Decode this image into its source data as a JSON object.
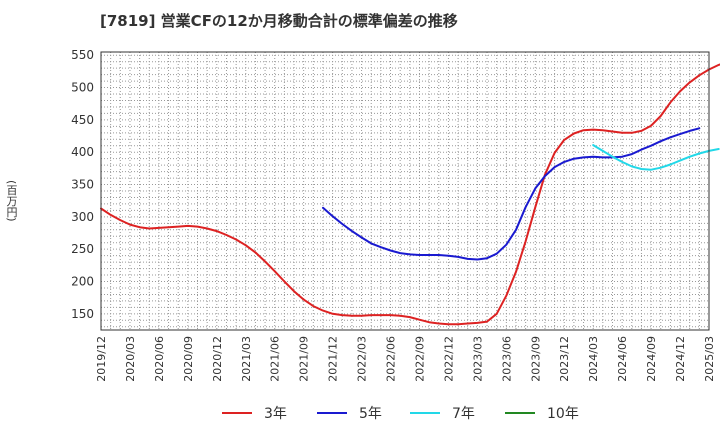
{
  "chart_data": {
    "type": "line",
    "title": "[7819]  営業CFの12か月移動合計の標準偏差の推移",
    "ylabel": "(百万円)",
    "xlabel": "",
    "ylim": [
      125,
      555
    ],
    "yticks": [
      150,
      200,
      250,
      300,
      350,
      400,
      450,
      500,
      550
    ],
    "x_ticks": [
      "2019/12",
      "2020/03",
      "2020/06",
      "2020/09",
      "2020/12",
      "2021/03",
      "2021/06",
      "2021/09",
      "2021/12",
      "2022/03",
      "2022/06",
      "2022/09",
      "2022/12",
      "2023/03",
      "2023/06",
      "2023/09",
      "2023/12",
      "2024/03",
      "2024/06",
      "2024/09",
      "2024/12",
      "2025/03"
    ],
    "grid": true,
    "legend_position": "bottom",
    "series": [
      {
        "name": "3年",
        "color": "#dd2222",
        "points": [
          [
            "2019/12",
            313
          ],
          [
            "2020/01",
            303
          ],
          [
            "2020/02",
            295
          ],
          [
            "2020/03",
            288
          ],
          [
            "2020/04",
            284
          ],
          [
            "2020/05",
            282
          ],
          [
            "2020/06",
            283
          ],
          [
            "2020/07",
            284
          ],
          [
            "2020/08",
            285
          ],
          [
            "2020/09",
            286
          ],
          [
            "2020/10",
            285
          ],
          [
            "2020/11",
            282
          ],
          [
            "2020/12",
            278
          ],
          [
            "2021/01",
            272
          ],
          [
            "2021/02",
            265
          ],
          [
            "2021/03",
            256
          ],
          [
            "2021/04",
            245
          ],
          [
            "2021/05",
            231
          ],
          [
            "2021/06",
            216
          ],
          [
            "2021/07",
            200
          ],
          [
            "2021/08",
            185
          ],
          [
            "2021/09",
            172
          ],
          [
            "2021/10",
            162
          ],
          [
            "2021/11",
            155
          ],
          [
            "2021/12",
            150
          ],
          [
            "2022/01",
            148
          ],
          [
            "2022/02",
            147
          ],
          [
            "2022/03",
            147
          ],
          [
            "2022/04",
            148
          ],
          [
            "2022/05",
            148
          ],
          [
            "2022/06",
            148
          ],
          [
            "2022/07",
            147
          ],
          [
            "2022/08",
            145
          ],
          [
            "2022/09",
            141
          ],
          [
            "2022/10",
            137
          ],
          [
            "2022/11",
            135
          ],
          [
            "2022/12",
            134
          ],
          [
            "2023/01",
            134
          ],
          [
            "2023/02",
            135
          ],
          [
            "2023/03",
            136
          ],
          [
            "2023/04",
            138
          ],
          [
            "2023/05",
            150
          ],
          [
            "2023/06",
            178
          ],
          [
            "2023/07",
            215
          ],
          [
            "2023/08",
            262
          ],
          [
            "2023/09",
            315
          ],
          [
            "2023/10",
            365
          ],
          [
            "2023/11",
            399
          ],
          [
            "2023/12",
            419
          ],
          [
            "2024/01",
            429
          ],
          [
            "2024/02",
            434
          ],
          [
            "2024/03",
            435
          ],
          [
            "2024/04",
            434
          ],
          [
            "2024/05",
            432
          ],
          [
            "2024/06",
            430
          ],
          [
            "2024/07",
            430
          ],
          [
            "2024/08",
            433
          ],
          [
            "2024/09",
            441
          ],
          [
            "2024/10",
            456
          ],
          [
            "2024/11",
            477
          ],
          [
            "2024/12",
            494
          ],
          [
            "2025/01",
            508
          ],
          [
            "2025/02",
            519
          ],
          [
            "2025/03",
            528
          ],
          [
            "2025/04",
            535
          ],
          [
            "2025/05",
            540
          ],
          [
            "2025/06",
            543
          ]
        ]
      },
      {
        "name": "5年",
        "color": "#1a1ad0",
        "points": [
          [
            "2021/11",
            314
          ],
          [
            "2021/12",
            301
          ],
          [
            "2022/01",
            289
          ],
          [
            "2022/02",
            278
          ],
          [
            "2022/03",
            268
          ],
          [
            "2022/04",
            259
          ],
          [
            "2022/05",
            253
          ],
          [
            "2022/06",
            248
          ],
          [
            "2022/07",
            244
          ],
          [
            "2022/08",
            242
          ],
          [
            "2022/09",
            241
          ],
          [
            "2022/10",
            241
          ],
          [
            "2022/11",
            241
          ],
          [
            "2022/12",
            240
          ],
          [
            "2023/01",
            238
          ],
          [
            "2023/02",
            235
          ],
          [
            "2023/03",
            234
          ],
          [
            "2023/04",
            236
          ],
          [
            "2023/05",
            243
          ],
          [
            "2023/06",
            257
          ],
          [
            "2023/07",
            280
          ],
          [
            "2023/08",
            315
          ],
          [
            "2023/09",
            344
          ],
          [
            "2023/10",
            363
          ],
          [
            "2023/11",
            377
          ],
          [
            "2023/12",
            385
          ],
          [
            "2024/01",
            390
          ],
          [
            "2024/02",
            392
          ],
          [
            "2024/03",
            393
          ],
          [
            "2024/04",
            392
          ],
          [
            "2024/05",
            392
          ],
          [
            "2024/06",
            393
          ],
          [
            "2024/07",
            397
          ],
          [
            "2024/08",
            404
          ],
          [
            "2024/09",
            410
          ],
          [
            "2024/10",
            417
          ],
          [
            "2024/11",
            423
          ],
          [
            "2024/12",
            428
          ],
          [
            "2025/01",
            433
          ],
          [
            "2025/02",
            437
          ]
        ]
      },
      {
        "name": "7年",
        "color": "#22d8e8",
        "points": [
          [
            "2024/03",
            411
          ],
          [
            "2024/04",
            402
          ],
          [
            "2024/05",
            393
          ],
          [
            "2024/06",
            385
          ],
          [
            "2024/07",
            378
          ],
          [
            "2024/08",
            374
          ],
          [
            "2024/09",
            373
          ],
          [
            "2024/10",
            376
          ],
          [
            "2024/11",
            381
          ],
          [
            "2024/12",
            387
          ],
          [
            "2025/01",
            393
          ],
          [
            "2025/02",
            398
          ],
          [
            "2025/03",
            402
          ],
          [
            "2025/04",
            405
          ]
        ]
      },
      {
        "name": "10年",
        "color": "#228822",
        "points": []
      }
    ]
  }
}
